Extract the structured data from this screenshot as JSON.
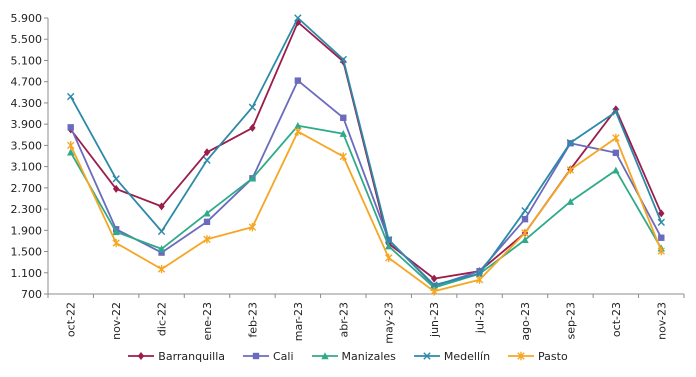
{
  "chart_data": {
    "type": "line",
    "categories": [
      "oct-22",
      "nov-22",
      "dic-22",
      "ene-23",
      "feb-23",
      "mar-23",
      "abr-23",
      "may-23",
      "jun-23",
      "jul-23",
      "ago-23",
      "sep-23",
      "oct-23",
      "nov-23"
    ],
    "ylim": [
      700,
      5900
    ],
    "yticks": [
      700,
      1100,
      1500,
      1900,
      2300,
      2700,
      3100,
      3500,
      3900,
      4300,
      4700,
      5100,
      5500,
      5900
    ],
    "ytick_labels": [
      "700",
      "1.100",
      "1.500",
      "1.900",
      "2.300",
      "2.700",
      "3.100",
      "3.500",
      "3.900",
      "4.300",
      "4.700",
      "5.100",
      "5.500",
      "5.900"
    ],
    "grid": false,
    "legend_position": "bottom",
    "series": [
      {
        "name": "Barranquilla",
        "color": "#9b1d4c",
        "marker": "diamond",
        "values": [
          3800,
          2680,
          2350,
          3370,
          3830,
          5820,
          5080,
          1650,
          990,
          1130,
          1850,
          3050,
          4180,
          2220
        ]
      },
      {
        "name": "Cali",
        "color": "#6b6bbd",
        "marker": "square",
        "values": [
          3840,
          1920,
          1480,
          2060,
          2880,
          4720,
          4020,
          1720,
          850,
          1130,
          2110,
          3540,
          3360,
          1760
        ]
      },
      {
        "name": "Manizales",
        "color": "#2eaa8a",
        "marker": "triangle",
        "values": [
          3370,
          1870,
          1550,
          2220,
          2880,
          3870,
          3720,
          1600,
          820,
          1080,
          1720,
          2440,
          3030,
          1560
        ]
      },
      {
        "name": "Medellín",
        "color": "#2c8aa8",
        "marker": "x",
        "values": [
          4420,
          2870,
          1880,
          3220,
          4220,
          5900,
          5120,
          1720,
          870,
          1080,
          2270,
          3550,
          4130,
          2050
        ]
      },
      {
        "name": "Pasto",
        "color": "#f5a623",
        "marker": "star",
        "values": [
          3500,
          1660,
          1170,
          1730,
          1960,
          3760,
          3290,
          1380,
          750,
          970,
          1850,
          3040,
          3640,
          1510
        ]
      }
    ]
  }
}
